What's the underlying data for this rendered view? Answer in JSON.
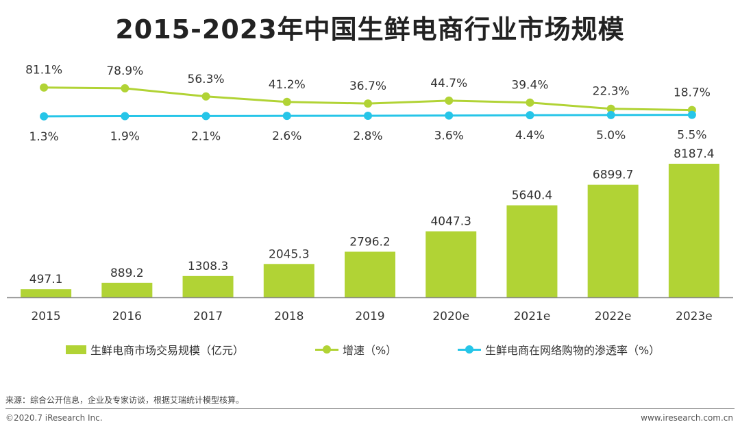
{
  "colors": {
    "bar": "#b1d335",
    "growth": "#b1d335",
    "penetration": "#26c5e8",
    "axis": "#888888",
    "text": "#333333"
  },
  "chart_data": {
    "type": "bar",
    "title": "2015-2023年中国生鲜电商行业市场规模",
    "categories": [
      "2015",
      "2016",
      "2017",
      "2018",
      "2019",
      "2020e",
      "2021e",
      "2022e",
      "2023e"
    ],
    "series": [
      {
        "name": "生鲜电商市场交易规模（亿元）",
        "type": "bar",
        "values": [
          497.1,
          889.2,
          1308.3,
          2045.3,
          2796.2,
          4047.3,
          5640.4,
          6899.7,
          8187.4
        ],
        "labels": [
          "497.1",
          "889.2",
          "1308.3",
          "2045.3",
          "2796.2",
          "4047.3",
          "5640.4",
          "6899.7",
          "8187.4"
        ]
      },
      {
        "name": "增速（%）",
        "type": "line",
        "values": [
          81.1,
          78.9,
          56.3,
          41.2,
          36.7,
          44.7,
          39.4,
          22.3,
          18.7
        ],
        "labels": [
          "81.1%",
          "78.9%",
          "56.3%",
          "41.2%",
          "36.7%",
          "44.7%",
          "39.4%",
          "22.3%",
          "18.7%"
        ]
      },
      {
        "name": "生鲜电商在网络购物的渗透率（%）",
        "type": "line",
        "values": [
          1.3,
          1.9,
          2.1,
          2.6,
          2.8,
          3.6,
          4.4,
          5.0,
          5.5
        ],
        "labels": [
          "1.3%",
          "1.9%",
          "2.1%",
          "2.6%",
          "2.8%",
          "3.6%",
          "4.4%",
          "5.0%",
          "5.5%"
        ]
      }
    ],
    "ylim": [
      0,
      8187.4
    ],
    "line_ylim": [
      0,
      100
    ],
    "xlabel": "",
    "ylabel": "",
    "grid": false,
    "legend_position": "bottom"
  },
  "footer": {
    "source": "来源：综合公开信息，企业及专家访谈，根据艾瑞统计模型核算。",
    "copyright": "©2020.7 iResearch Inc.",
    "website": "www.iresearch.com.cn"
  }
}
